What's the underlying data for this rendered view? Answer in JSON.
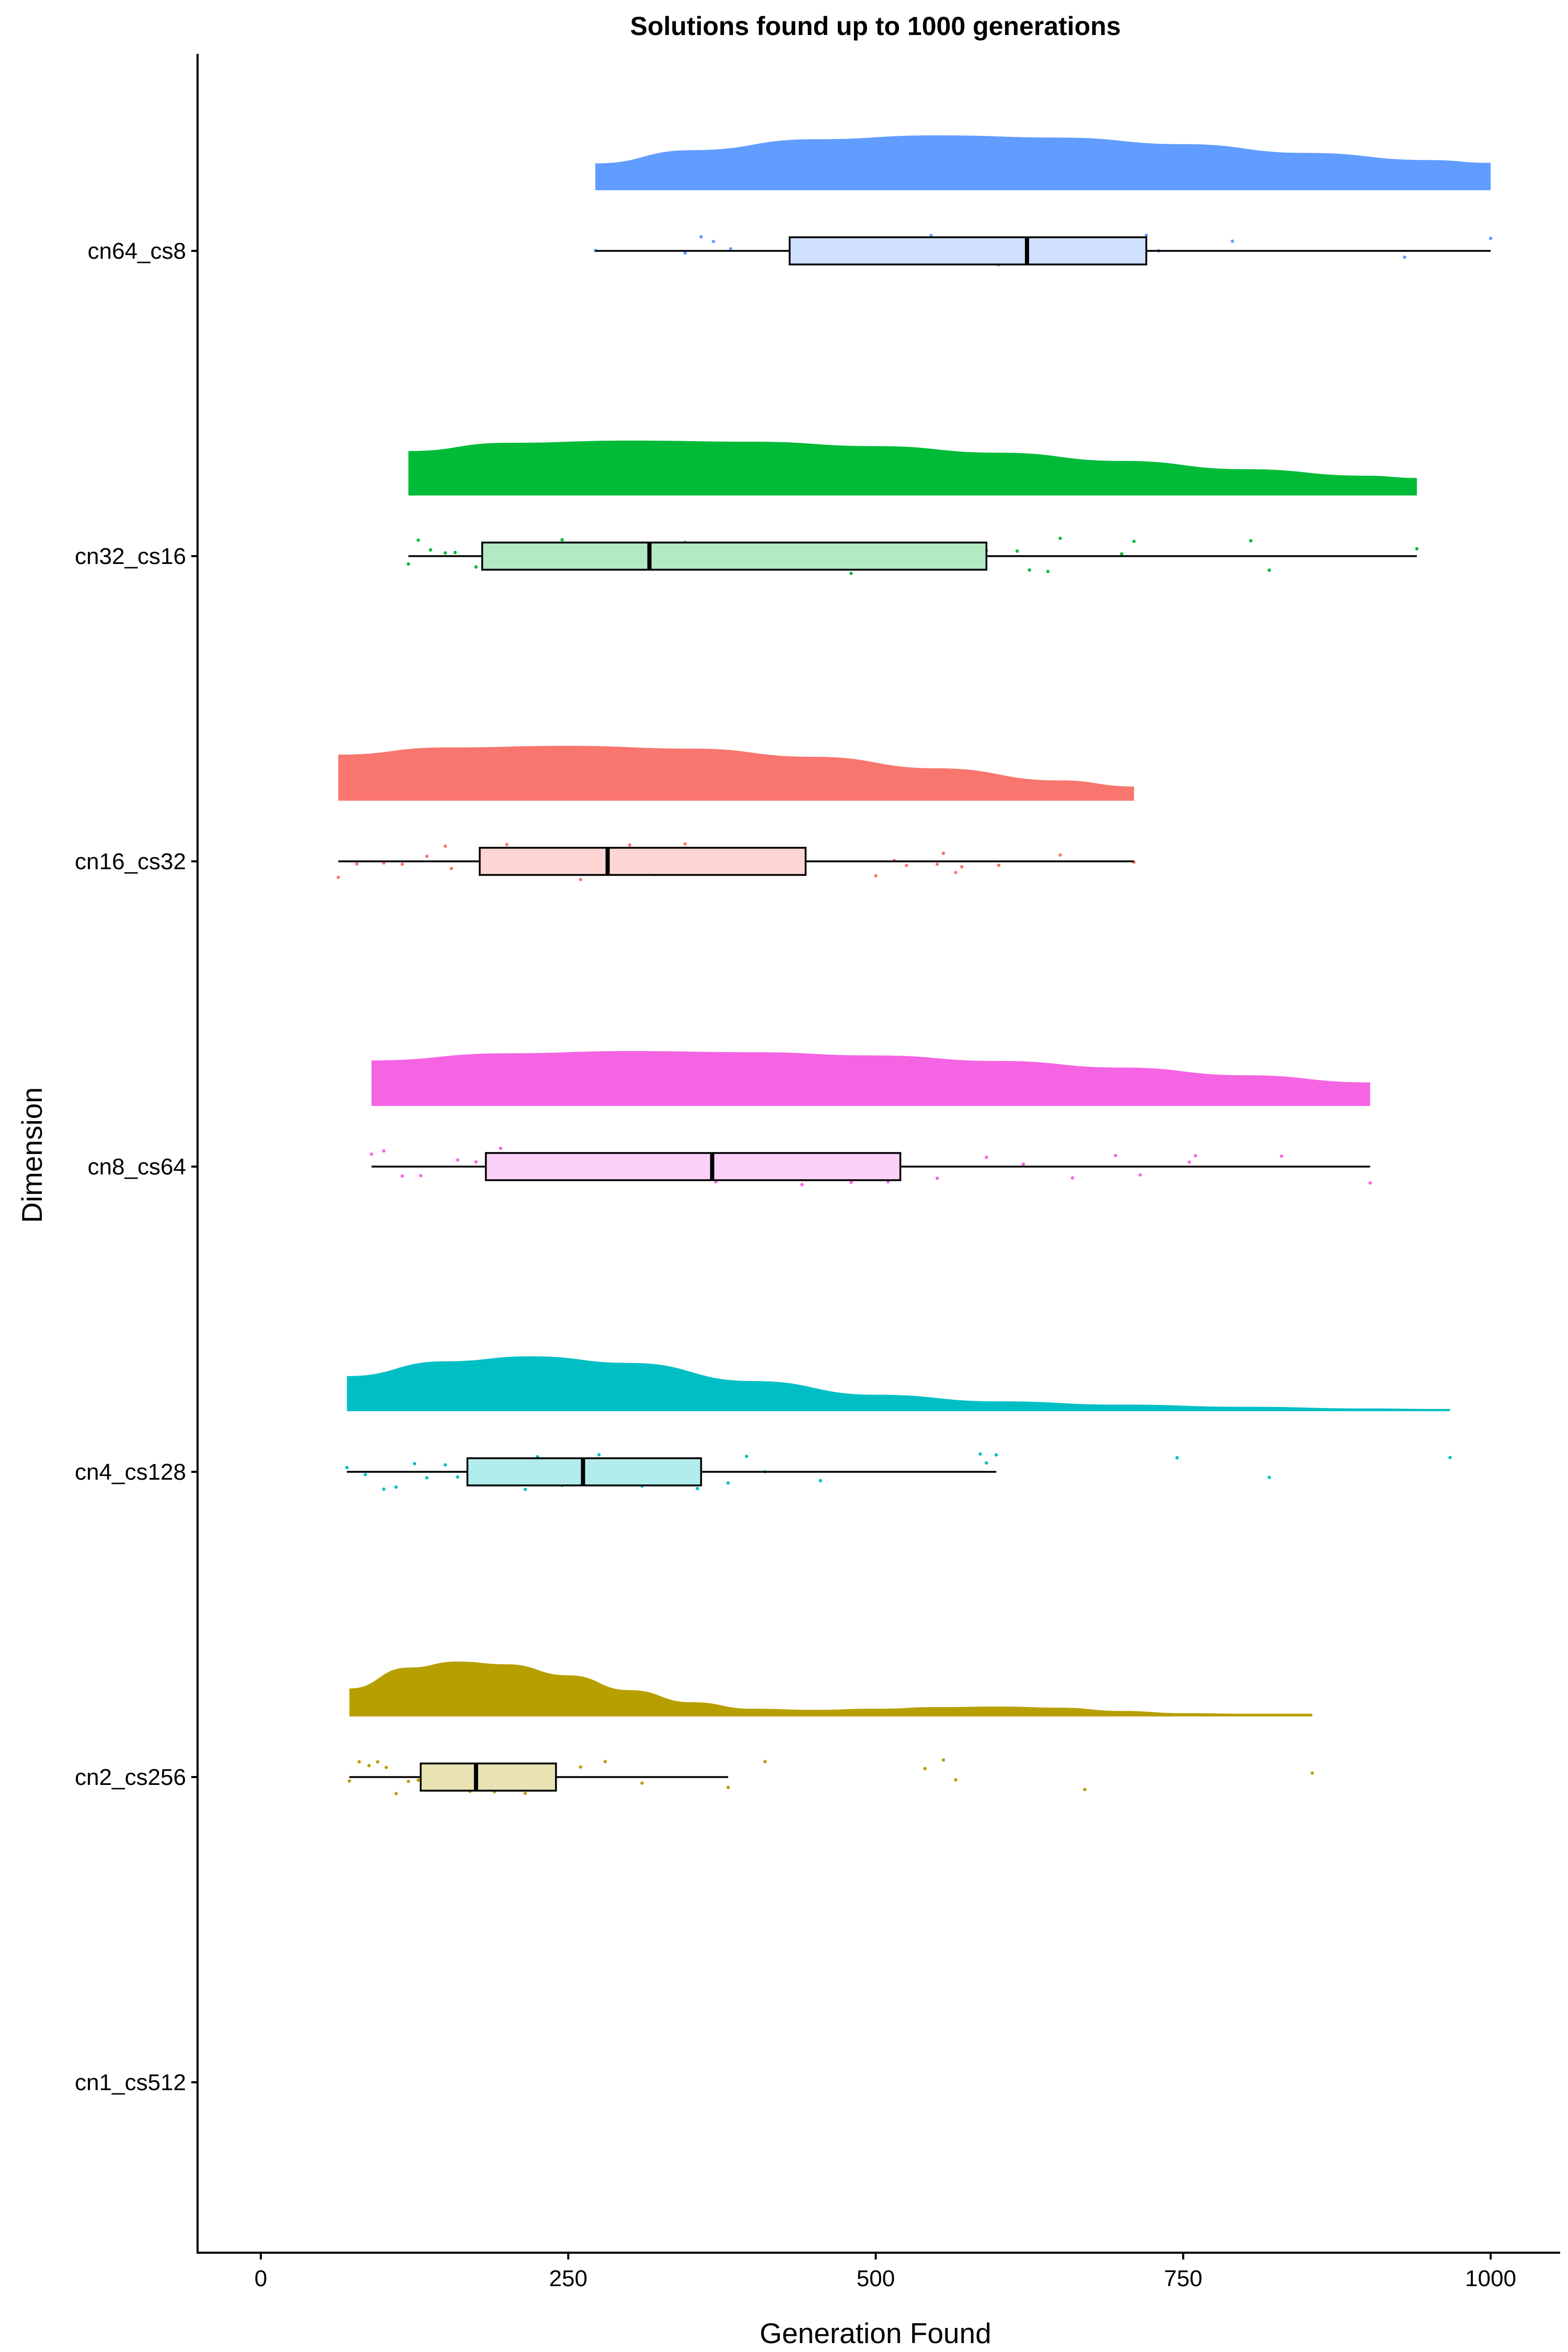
{
  "chart_data": {
    "type": "raincloud",
    "title": "Solutions found up to 1000 generations",
    "xlabel": "Generation Found",
    "ylabel": "Dimension",
    "xlim": [
      -52,
      1052
    ],
    "x_ticks": [
      0,
      250,
      500,
      750,
      1000
    ],
    "grid": false,
    "legend": "none",
    "categories": [
      "cn64_cs8",
      "cn32_cs16",
      "cn16_cs32",
      "cn8_cs64",
      "cn4_cs128",
      "cn2_cs256",
      "cn1_cs512"
    ],
    "series": [
      {
        "category": "cn64_cs8",
        "color": "#619CFF",
        "box_fill": "#D0E1FF",
        "box": {
          "min": 272,
          "q1": 430,
          "median": 623,
          "q3": 720,
          "max": 1000
        },
        "density": [
          [
            272,
            0.49
          ],
          [
            350,
            0.73
          ],
          [
            450,
            0.93
          ],
          [
            550,
            1.0
          ],
          [
            650,
            0.96
          ],
          [
            750,
            0.84
          ],
          [
            850,
            0.68
          ],
          [
            950,
            0.55
          ],
          [
            1000,
            0.5
          ]
        ],
        "points": [
          272,
          345,
          358,
          368,
          382,
          455,
          545,
          600,
          625,
          640,
          655,
          670,
          700,
          720,
          730,
          790,
          930,
          1000
        ]
      },
      {
        "category": "cn32_cs16",
        "color": "#00BA38",
        "box_fill": "#B3EAC3",
        "box": {
          "min": 120,
          "q1": 180,
          "median": 316,
          "q3": 590,
          "max": 940
        },
        "density": [
          [
            120,
            0.81
          ],
          [
            200,
            0.96
          ],
          [
            300,
            1.0
          ],
          [
            400,
            0.98
          ],
          [
            500,
            0.9
          ],
          [
            600,
            0.78
          ],
          [
            700,
            0.63
          ],
          [
            800,
            0.48
          ],
          [
            900,
            0.36
          ],
          [
            940,
            0.32
          ]
        ],
        "points": [
          120,
          128,
          138,
          150,
          158,
          175,
          185,
          200,
          230,
          245,
          265,
          290,
          300,
          315,
          330,
          345,
          370,
          400,
          410,
          430,
          460,
          480,
          505,
          540,
          590,
          615,
          625,
          640,
          650,
          700,
          710,
          805,
          820,
          940
        ]
      },
      {
        "category": "cn16_cs32",
        "color": "#F8766D",
        "box_fill": "#FDD6D3",
        "box": {
          "min": 63,
          "q1": 178,
          "median": 282,
          "q3": 443,
          "max": 710
        },
        "density": [
          [
            63,
            0.84
          ],
          [
            150,
            0.97
          ],
          [
            250,
            1.0
          ],
          [
            350,
            0.95
          ],
          [
            450,
            0.8
          ],
          [
            550,
            0.59
          ],
          [
            650,
            0.37
          ],
          [
            710,
            0.26
          ]
        ],
        "points": [
          63,
          78,
          100,
          115,
          135,
          150,
          155,
          185,
          200,
          215,
          230,
          240,
          260,
          300,
          320,
          345,
          360,
          370,
          400,
          430,
          440,
          500,
          515,
          525,
          550,
          555,
          565,
          570,
          600,
          650,
          710
        ]
      },
      {
        "category": "cn8_cs64",
        "color": "#F564E3",
        "box_fill": "#FCD1F7",
        "box": {
          "min": 90,
          "q1": 183,
          "median": 367,
          "q3": 520,
          "max": 902
        },
        "density": [
          [
            90,
            0.83
          ],
          [
            200,
            0.96
          ],
          [
            300,
            1.0
          ],
          [
            400,
            0.98
          ],
          [
            500,
            0.92
          ],
          [
            600,
            0.82
          ],
          [
            700,
            0.7
          ],
          [
            800,
            0.56
          ],
          [
            902,
            0.43
          ]
        ],
        "points": [
          90,
          100,
          115,
          130,
          160,
          175,
          195,
          200,
          225,
          235,
          270,
          280,
          300,
          310,
          340,
          370,
          390,
          420,
          440,
          480,
          510,
          550,
          590,
          620,
          660,
          695,
          715,
          755,
          760,
          830,
          902
        ]
      },
      {
        "category": "cn4_cs128",
        "color": "#00BFC4",
        "box_fill": "#B3ECED",
        "box": {
          "min": 70,
          "q1": 168,
          "median": 262,
          "q3": 358,
          "max": 598
        },
        "density": [
          [
            70,
            0.64
          ],
          [
            150,
            0.91
          ],
          [
            220,
            1.0
          ],
          [
            300,
            0.88
          ],
          [
            400,
            0.55
          ],
          [
            500,
            0.3
          ],
          [
            600,
            0.18
          ],
          [
            700,
            0.12
          ],
          [
            800,
            0.08
          ],
          [
            900,
            0.05
          ],
          [
            967,
            0.04
          ]
        ],
        "points": [
          70,
          85,
          100,
          110,
          125,
          135,
          150,
          160,
          195,
          215,
          225,
          245,
          260,
          275,
          290,
          300,
          310,
          355,
          380,
          395,
          410,
          455,
          585,
          590,
          598,
          745,
          820,
          967
        ]
      },
      {
        "category": "cn2_cs256",
        "color": "#B79F00",
        "box_fill": "#E9E2B3",
        "box": {
          "min": 72,
          "q1": 130,
          "median": 175,
          "q3": 240,
          "max": 380
        },
        "density": [
          [
            72,
            0.51
          ],
          [
            120,
            0.89
          ],
          [
            160,
            1.0
          ],
          [
            200,
            0.95
          ],
          [
            250,
            0.75
          ],
          [
            300,
            0.48
          ],
          [
            350,
            0.26
          ],
          [
            400,
            0.14
          ],
          [
            450,
            0.12
          ],
          [
            500,
            0.14
          ],
          [
            550,
            0.17
          ],
          [
            600,
            0.18
          ],
          [
            650,
            0.16
          ],
          [
            700,
            0.1
          ],
          [
            750,
            0.06
          ],
          [
            800,
            0.05
          ],
          [
            855,
            0.05
          ]
        ],
        "points": [
          72,
          80,
          88,
          95,
          102,
          110,
          120,
          128,
          145,
          155,
          160,
          170,
          175,
          180,
          190,
          200,
          215,
          225,
          235,
          260,
          280,
          310,
          380,
          410,
          540,
          555,
          565,
          670,
          855
        ]
      },
      {
        "category": "cn1_cs512",
        "color": "#F8766D",
        "box_fill": "#FDD6D3",
        "box": null,
        "density": [],
        "points": []
      }
    ]
  }
}
